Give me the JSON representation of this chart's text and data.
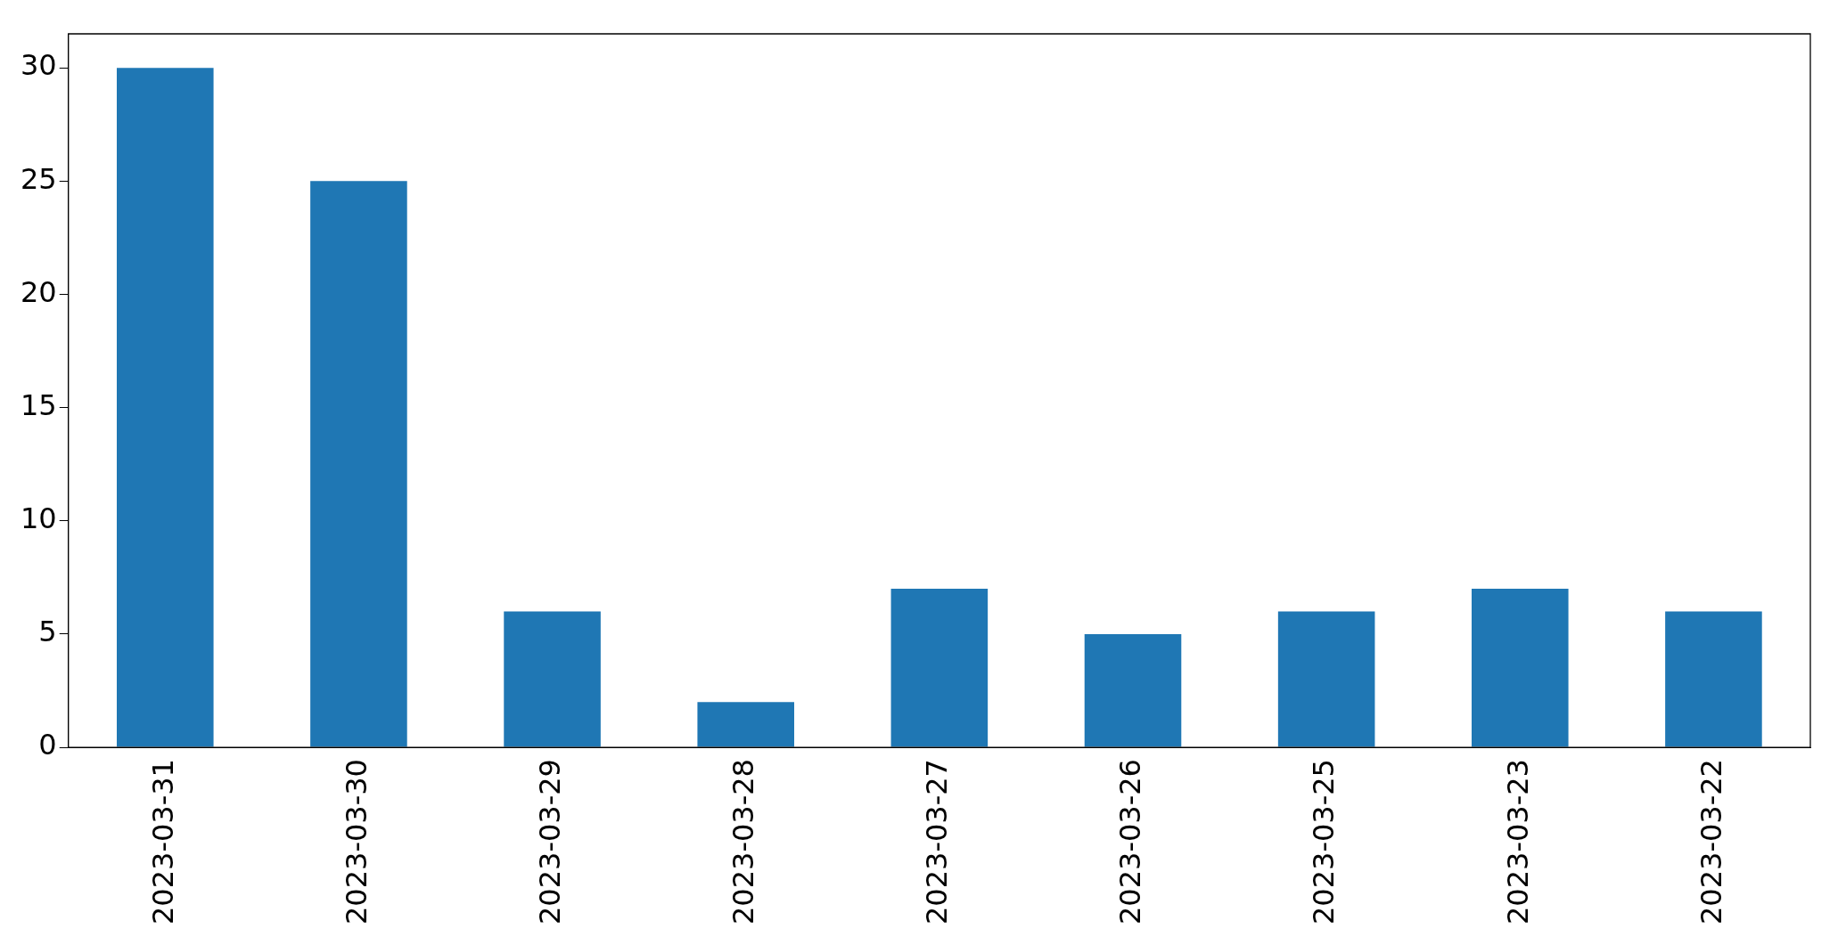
{
  "chart_data": {
    "type": "bar",
    "categories": [
      "2023-03-31",
      "2023-03-30",
      "2023-03-29",
      "2023-03-28",
      "2023-03-27",
      "2023-03-26",
      "2023-03-25",
      "2023-03-23",
      "2023-03-22"
    ],
    "values": [
      30,
      25,
      6,
      2,
      7,
      5,
      6,
      7,
      6
    ],
    "color": "#1f77b4",
    "ylim": [
      0,
      31.5
    ],
    "yticks": [
      0,
      5,
      10,
      15,
      20,
      25,
      30
    ],
    "grid": false,
    "legend": false
  }
}
